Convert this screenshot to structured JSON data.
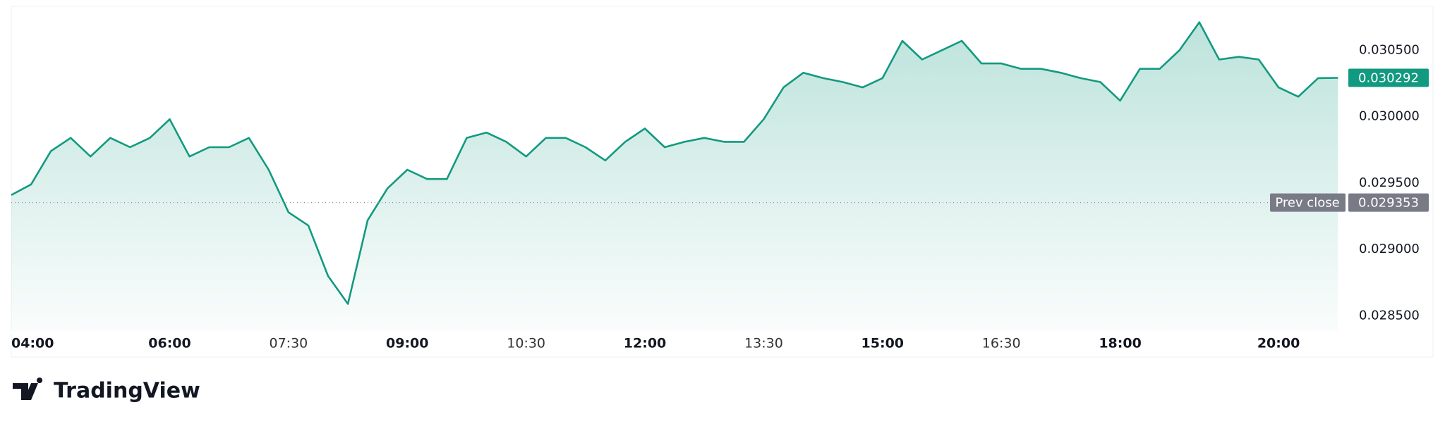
{
  "chart_data": {
    "type": "area",
    "x": [
      "04:00",
      "04:15",
      "04:30",
      "04:45",
      "05:00",
      "05:15",
      "05:30",
      "05:45",
      "06:00",
      "06:15",
      "06:30",
      "06:45",
      "07:00",
      "07:15",
      "07:30",
      "07:45",
      "08:00",
      "08:15",
      "08:30",
      "08:45",
      "09:00",
      "09:15",
      "09:30",
      "09:45",
      "10:00",
      "10:15",
      "10:30",
      "10:45",
      "11:00",
      "11:15",
      "11:30",
      "11:45",
      "12:00",
      "12:15",
      "12:30",
      "12:45",
      "13:00",
      "13:15",
      "13:30",
      "13:45",
      "14:00",
      "14:15",
      "14:30",
      "14:45",
      "15:00",
      "15:15",
      "15:30",
      "15:45",
      "16:00",
      "16:15",
      "16:30",
      "16:45",
      "17:00",
      "17:15",
      "17:30",
      "17:45",
      "18:00",
      "18:15",
      "18:30",
      "18:45",
      "19:00",
      "19:15",
      "19:30",
      "19:45",
      "20:00",
      "20:15",
      "20:30",
      "20:45"
    ],
    "series": [
      {
        "color": "#129a80",
        "values": [
          0.02941,
          0.02949,
          0.02974,
          0.02984,
          0.0297,
          0.02984,
          0.02977,
          0.02984,
          0.02998,
          0.0297,
          0.02977,
          0.02977,
          0.02984,
          0.0296,
          0.02928,
          0.02918,
          0.0288,
          0.02859,
          0.02922,
          0.02946,
          0.0296,
          0.02953,
          0.02953,
          0.02984,
          0.02988,
          0.02981,
          0.0297,
          0.02984,
          0.02984,
          0.02977,
          0.02967,
          0.02981,
          0.02991,
          0.02977,
          0.02981,
          0.02984,
          0.02981,
          0.02981,
          0.02998,
          0.03022,
          0.03033,
          0.03029,
          0.03026,
          0.03022,
          0.03029,
          0.03057,
          0.03043,
          0.0305,
          0.03057,
          0.0304,
          0.0304,
          0.03036,
          0.03036,
          0.03033,
          0.03029,
          0.03026,
          0.03012,
          0.03036,
          0.03036,
          0.0305,
          0.03071,
          0.03043,
          0.03045,
          0.03043,
          0.03022,
          0.03015,
          0.03029,
          0.030292
        ]
      }
    ],
    "xlim": [
      "04:00",
      "20:47"
    ],
    "xticks": [
      "04:00",
      "06:00",
      "07:30",
      "09:00",
      "10:30",
      "12:00",
      "13:30",
      "15:00",
      "16:30",
      "18:00",
      "20:00"
    ],
    "xtick_bold": [
      true,
      true,
      false,
      true,
      false,
      true,
      false,
      true,
      false,
      true,
      true
    ],
    "ylim": [
      0.02819,
      0.03083
    ],
    "yticks": [
      {
        "value": 0.0285,
        "label": "0.028500"
      },
      {
        "value": 0.029,
        "label": "0.029000"
      },
      {
        "value": 0.0295,
        "label": "0.029500"
      },
      {
        "value": 0.03,
        "label": "0.030000"
      },
      {
        "value": 0.0305,
        "label": "0.030500"
      }
    ],
    "last_price": {
      "value": 0.030292,
      "label": "0.030292"
    },
    "prev_close": {
      "name": "Prev close",
      "value": 0.029353,
      "label": "0.029353"
    },
    "brand": "TradingView"
  }
}
